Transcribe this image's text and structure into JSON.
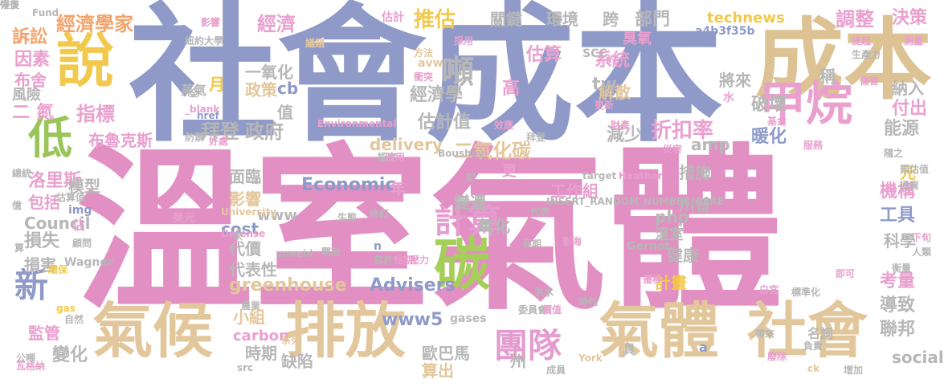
{
  "words": [
    {
      "text": "溫室氣體",
      "color": "#e28fc3"
    },
    {
      "text": "社會成本",
      "color": "#8f9ac8"
    },
    {
      "text": "成本",
      "color": "#ddc294"
    },
    {
      "text": "說",
      "color": "#f2c94c"
    },
    {
      "text": "低",
      "color": "#9bc55a"
    },
    {
      "text": "甲烷",
      "color": "#e9a0cf"
    },
    {
      "text": "碳",
      "color": "#a6cf5a"
    },
    {
      "text": "計算",
      "color": "#e49ccf"
    },
    {
      "text": "氣候",
      "color": "#e3c79c"
    },
    {
      "text": "排放",
      "color": "#e3c79c"
    },
    {
      "text": "氣體",
      "color": "#e3c79c"
    },
    {
      "text": "社會",
      "color": "#e3c79c"
    },
    {
      "text": "團隊",
      "color": "#e49ccf"
    },
    {
      "text": "新",
      "color": "#8f9ac8"
    },
    {
      "text": "噸",
      "color": "#b7b7b7"
    },
    {
      "text": "經濟學家",
      "color": "#f2a36b"
    },
    {
      "text": "經濟",
      "color": "#e9a0cf"
    },
    {
      "text": "推估",
      "color": "#f2c94c"
    },
    {
      "text": "關鍵",
      "color": "#b7b7b7"
    },
    {
      "text": "環境",
      "color": "#b7b7b7"
    },
    {
      "text": "跨",
      "color": "#b7b7b7"
    },
    {
      "text": "部門",
      "color": "#b7b7b7"
    },
    {
      "text": "technews",
      "color": "#f2c94c"
    },
    {
      "text": "調整",
      "color": "#e9a0cf"
    },
    {
      "text": "決策",
      "color": "#e9a0cf"
    },
    {
      "text": "訴訟",
      "color": "#f2a36b"
    },
    {
      "text": "因素",
      "color": "#e9a0cf"
    },
    {
      "text": "布舍",
      "color": "#e9a0cf"
    },
    {
      "text": "風險",
      "color": "#b7b7b7"
    },
    {
      "text": "二",
      "color": "#e9a0cf"
    },
    {
      "text": "氮",
      "color": "#e9a0cf"
    },
    {
      "text": "指標",
      "color": "#e9a0cf"
    },
    {
      "text": "一氧化",
      "color": "#b7b7b7"
    },
    {
      "text": "政策",
      "color": "#e3c79c"
    },
    {
      "text": "系統",
      "color": "#e9a0cf"
    },
    {
      "text": "估算",
      "color": "#e9a0cf"
    },
    {
      "text": "高",
      "color": "#e9a0cf"
    },
    {
      "text": "經濟學",
      "color": "#b7b7b7"
    },
    {
      "text": "估計值",
      "color": "#b7b7b7"
    },
    {
      "text": "折扣率",
      "color": "#e9a0cf"
    },
    {
      "text": "暖化",
      "color": "#8f9ac8"
    },
    {
      "text": "能源",
      "color": "#b7b7b7"
    },
    {
      "text": "破壞",
      "color": "#b7b7b7"
    },
    {
      "text": "將來",
      "color": "#b7b7b7"
    },
    {
      "text": "解散",
      "color": "#e3c79c"
    },
    {
      "text": "納入",
      "color": "#b7b7b7"
    },
    {
      "text": "付出",
      "color": "#e9a0cf"
    },
    {
      "text": "二氧化碳",
      "color": "#e3c79c"
    },
    {
      "text": "拜登",
      "color": "#b7b7b7"
    },
    {
      "text": "政府",
      "color": "#b7b7b7"
    },
    {
      "text": "減少",
      "color": "#b7b7b7"
    },
    {
      "text": "措施",
      "color": "#b7b7b7"
    },
    {
      "text": "工作組",
      "color": "#e9a0cf"
    },
    {
      "text": "布魯克斯",
      "color": "#e9a0cf"
    },
    {
      "text": "洛里斯",
      "color": "#e9a0cf"
    },
    {
      "text": "包括",
      "color": "#e9a0cf"
    },
    {
      "text": "模型",
      "color": "#b7b7b7"
    },
    {
      "text": "面臨",
      "color": "#b7b7b7"
    },
    {
      "text": "影響",
      "color": "#e3c79c"
    },
    {
      "text": "Economic",
      "color": "#8f9ac8"
    },
    {
      "text": "川普",
      "color": "#b7b7b7"
    },
    {
      "text": "機構",
      "color": "#e9a0cf"
    },
    {
      "text": "Council",
      "color": "#b7b7b7"
    },
    {
      "text": "損失",
      "color": "#b7b7b7"
    },
    {
      "text": "損害",
      "color": "#b7b7b7"
    },
    {
      "text": "cost",
      "color": "#8f9ac8"
    },
    {
      "text": "php",
      "color": "#b7b7b7"
    },
    {
      "text": "變遷",
      "color": "#b7b7b7"
    },
    {
      "text": "氧化",
      "color": "#b7b7b7"
    },
    {
      "text": "工具",
      "color": "#8f9ac8"
    },
    {
      "text": "科學",
      "color": "#b7b7b7"
    },
    {
      "text": "代價",
      "color": "#b7b7b7"
    },
    {
      "text": "代表性",
      "color": "#b7b7b7"
    },
    {
      "text": "健康",
      "color": "#b7b7b7"
    },
    {
      "text": "greenhouse",
      "color": "#e3c79c"
    },
    {
      "text": "Advisers",
      "color": "#8f9ac8"
    },
    {
      "text": "計畫",
      "color": "#f2c94c"
    },
    {
      "text": "考量",
      "color": "#e9a0cf"
    },
    {
      "text": "導致",
      "color": "#b7b7b7"
    },
    {
      "text": "監管",
      "color": "#e9a0cf"
    },
    {
      "text": "變化",
      "color": "#b7b7b7"
    },
    {
      "text": "www5",
      "color": "#8f9ac8"
    },
    {
      "text": "時期",
      "color": "#b7b7b7"
    },
    {
      "text": "歐巴馬",
      "color": "#b7b7b7"
    },
    {
      "text": "算出",
      "color": "#e3c79c"
    },
    {
      "text": "聯邦",
      "color": "#b7b7b7"
    },
    {
      "text": "social",
      "color": "#b7b7b7"
    },
    {
      "text": "delivery",
      "color": "#e3c79c"
    },
    {
      "text": "amp",
      "color": "#b7b7b7"
    },
    {
      "text": "www",
      "color": "#b7b7b7"
    },
    {
      "text": "元",
      "color": "#f2c94c"
    },
    {
      "text": "年",
      "color": "#e9a0cf"
    },
    {
      "text": "更",
      "color": "#e9a0cf"
    },
    {
      "text": "月",
      "color": "#f2c94c"
    },
    {
      "text": "tw",
      "color": "#b7b7b7"
    },
    {
      "text": "值",
      "color": "#b7b7b7"
    },
    {
      "text": "cb",
      "color": "#8f9ac8"
    },
    {
      "text": "蒸氣",
      "color": "#b7b7b7"
    },
    {
      "text": "小組",
      "color": "#e3c79c"
    },
    {
      "text": "carbon",
      "color": "#e9a0cf"
    },
    {
      "text": "缺陷",
      "color": "#b7b7b7"
    },
    {
      "text": "州",
      "color": "#b7b7b7"
    },
    {
      "text": "稱",
      "color": "#b7b7b7"
    },
    {
      "text": "SCC",
      "color": "#b7b7b7"
    },
    {
      "text": "a4b3f35b",
      "color": "#8f9ac8"
    },
    {
      "text": "gases",
      "color": "#b7b7b7"
    },
    {
      "text": "Environmental",
      "color": "#e9a0cf"
    },
    {
      "text": "INSERT_RANDOM_NUMBER_HERE",
      "color": "#b7b7b7"
    },
    {
      "text": "Boushey",
      "color": "#b7b7b7"
    },
    {
      "text": "Heather",
      "color": "#e9a0cf"
    },
    {
      "text": "target",
      "color": "#b7b7b7"
    },
    {
      "text": "修訂",
      "color": "#b7b7b7"
    },
    {
      "text": "zoneid",
      "color": "#b7b7b7"
    },
    {
      "text": "University",
      "color": "#e3c79c"
    },
    {
      "text": "Defense",
      "color": "#e9a0cf"
    },
    {
      "text": "Wagner",
      "color": "#b7b7b7"
    },
    {
      "text": "img",
      "color": "#8f9ac8"
    },
    {
      "text": "href",
      "color": "#8f9ac8"
    },
    {
      "text": "src",
      "color": "#b7b7b7"
    },
    {
      "text": "York",
      "color": "#e3c79c"
    },
    {
      "text": "Gernot",
      "color": "#b7b7b7"
    },
    {
      "text": "ck",
      "color": "#e3c79c"
    },
    {
      "text": "_blank",
      "color": "#e9a0cf"
    },
    {
      "text": "Fund",
      "color": "#b7b7b7"
    },
    {
      "text": "avw",
      "color": "#e3c79c"
    },
    {
      "text": "gas",
      "color": "#f2c94c"
    },
    {
      "text": "n",
      "color": "#8f9ac8"
    },
    {
      "text": "a",
      "color": "#8f9ac8"
    },
    {
      "text": "溫室",
      "color": "#b7b7b7"
    },
    {
      "text": "臭氧",
      "color": "#e9a0cf"
    },
    {
      "text": "水",
      "color": "#e9a0cf"
    },
    {
      "text": "具",
      "color": "#b7b7b7"
    },
    {
      "text": "名詞",
      "color": "#b7b7b7"
    },
    {
      "text": "佔",
      "color": "#e9a0cf"
    },
    {
      "text": "環保",
      "color": "#f2c94c"
    },
    {
      "text": "美元",
      "color": "#e9a0cf"
    },
    {
      "text": "影響",
      "color": "#e9a0cf"
    },
    {
      "text": "紐約大學",
      "color": "#b7b7b7"
    },
    {
      "text": "估計",
      "color": "#e9a0cf"
    },
    {
      "text": "議題",
      "color": "#e3c79c"
    },
    {
      "text": "採用",
      "color": "#e9a0cf"
    },
    {
      "text": "方法",
      "color": "#e3c79c"
    },
    {
      "text": "衝突",
      "color": "#e9a0cf"
    },
    {
      "text": "測量",
      "color": "#e9a0cf"
    },
    {
      "text": "生產力",
      "color": "#b7b7b7"
    },
    {
      "text": "提起",
      "color": "#e9a0cf"
    },
    {
      "text": "傷害",
      "color": "#e9a0cf"
    },
    {
      "text": "下旬",
      "color": "#e9a0cf"
    },
    {
      "text": "人類",
      "color": "#b7b7b7"
    },
    {
      "text": "衡量",
      "color": "#b7b7b7"
    },
    {
      "text": "即可",
      "color": "#e9a0cf"
    },
    {
      "text": "標準化",
      "color": "#b7b7b7"
    },
    {
      "text": "白宮",
      "color": "#e9a0cf"
    },
    {
      "text": "遷移",
      "color": "#e9a0cf"
    },
    {
      "text": "洪水",
      "color": "#b7b7b7"
    },
    {
      "text": "委員會",
      "color": "#b7b7b7"
    },
    {
      "text": "價值",
      "color": "#e9a0cf"
    },
    {
      "text": "時代",
      "color": "#b7b7b7"
    },
    {
      "text": "帶來",
      "color": "#b7b7b7"
    },
    {
      "text": "負責",
      "color": "#b7b7b7"
    },
    {
      "text": "增加",
      "color": "#b7b7b7"
    },
    {
      "text": "廢除",
      "color": "#e9a0cf"
    },
    {
      "text": "成員",
      "color": "#b7b7b7"
    },
    {
      "text": "瓦格納",
      "color": "#e9a0cf"
    },
    {
      "text": "公噸",
      "color": "#b7b7b7"
    },
    {
      "text": "自然",
      "color": "#b7b7b7"
    },
    {
      "text": "農業",
      "color": "#b7b7b7"
    },
    {
      "text": "系列",
      "color": "#e3c79c"
    },
    {
      "text": "釋放",
      "color": "#b7b7b7"
    },
    {
      "text": "容許",
      "color": "#b7b7b7"
    },
    {
      "text": "壓力",
      "color": "#e9a0cf"
    },
    {
      "text": "長期",
      "color": "#b7b7b7"
    },
    {
      "text": "短期",
      "color": "#e9a0cf"
    },
    {
      "text": "代表",
      "color": "#b7b7b7"
    },
    {
      "text": "生態",
      "color": "#b7b7b7"
    },
    {
      "text": "認定",
      "color": "#b7b7b7"
    },
    {
      "text": "改用",
      "color": "#e9a0cf"
    },
    {
      "text": "拜登",
      "color": "#b7b7b7"
    },
    {
      "text": "防禦",
      "color": "#b7b7b7"
    },
    {
      "text": "好處",
      "color": "#e9a0cf"
    },
    {
      "text": "效應",
      "color": "#e9a0cf"
    },
    {
      "text": "財產",
      "color": "#e9a0cf"
    },
    {
      "text": "基金",
      "color": "#e9a0cf"
    },
    {
      "text": "更新",
      "color": "#e9a0cf"
    },
    {
      "text": "災害",
      "color": "#e9a0cf"
    },
    {
      "text": "服務",
      "color": "#e9a0cf"
    },
    {
      "text": "隨之",
      "color": "#b7b7b7"
    },
    {
      "text": "預估值",
      "color": "#b7b7b7"
    },
    {
      "text": "通貨",
      "color": "#b7b7b7"
    },
    {
      "text": "總統",
      "color": "#b7b7b7"
    },
    {
      "text": "億",
      "color": "#b7b7b7"
    },
    {
      "text": "算",
      "color": "#b7b7b7"
    },
    {
      "text": "顧問",
      "color": "#b7b7b7"
    },
    {
      "text": "全",
      "color": "#b7b7b7"
    },
    {
      "text": "影海",
      "color": "#e9a0cf"
    },
    {
      "text": "初",
      "color": "#b7b7b7"
    },
    {
      "text": "來",
      "color": "#b7b7b7"
    },
    {
      "text": "約",
      "color": "#e9a0cf"
    },
    {
      "text": "估算值",
      "color": "#b7b7b7"
    },
    {
      "text": "得多",
      "color": "#b7b7b7"
    },
    {
      "text": "恢復",
      "color": "#b7b7b7"
    }
  ]
}
